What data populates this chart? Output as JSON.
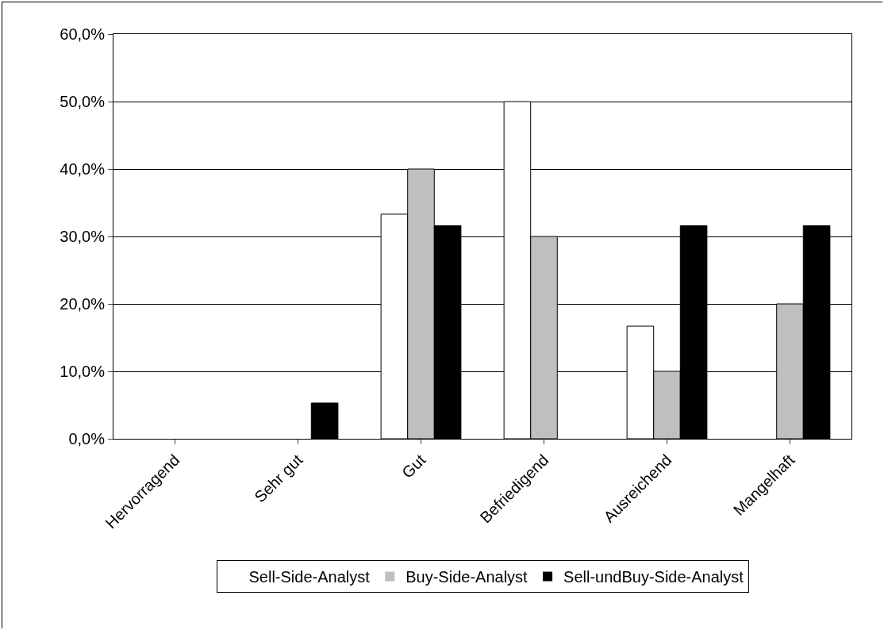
{
  "chart_data": {
    "type": "bar",
    "categories": [
      "Hervorragend",
      "Sehr gut",
      "Gut",
      "Befriedigend",
      "Ausreichend",
      "Mangelhaft"
    ],
    "series": [
      {
        "name": "Sell-Side-Analyst",
        "color": "#ffffff",
        "values": [
          0,
          0,
          33.3,
          50,
          16.7,
          0
        ]
      },
      {
        "name": "Buy-Side-Analyst",
        "color": "#bfbfbf",
        "values": [
          0,
          0,
          40,
          30,
          10,
          20
        ]
      },
      {
        "name": "Sell-undBuy-Side-Analyst",
        "color": "#000000",
        "values": [
          0,
          5.3,
          31.6,
          0,
          31.6,
          31.6
        ]
      }
    ],
    "ylim": [
      0,
      60
    ],
    "yticks": [
      {
        "value": 0,
        "label": "0,0%"
      },
      {
        "value": 10,
        "label": "10,0%"
      },
      {
        "value": 20,
        "label": "20,0%"
      },
      {
        "value": 30,
        "label": "30,0%"
      },
      {
        "value": 40,
        "label": "40,0%"
      },
      {
        "value": 50,
        "label": "50,0%"
      },
      {
        "value": 60,
        "label": "60,0%"
      }
    ],
    "grid": "y",
    "legend": "bottom"
  }
}
